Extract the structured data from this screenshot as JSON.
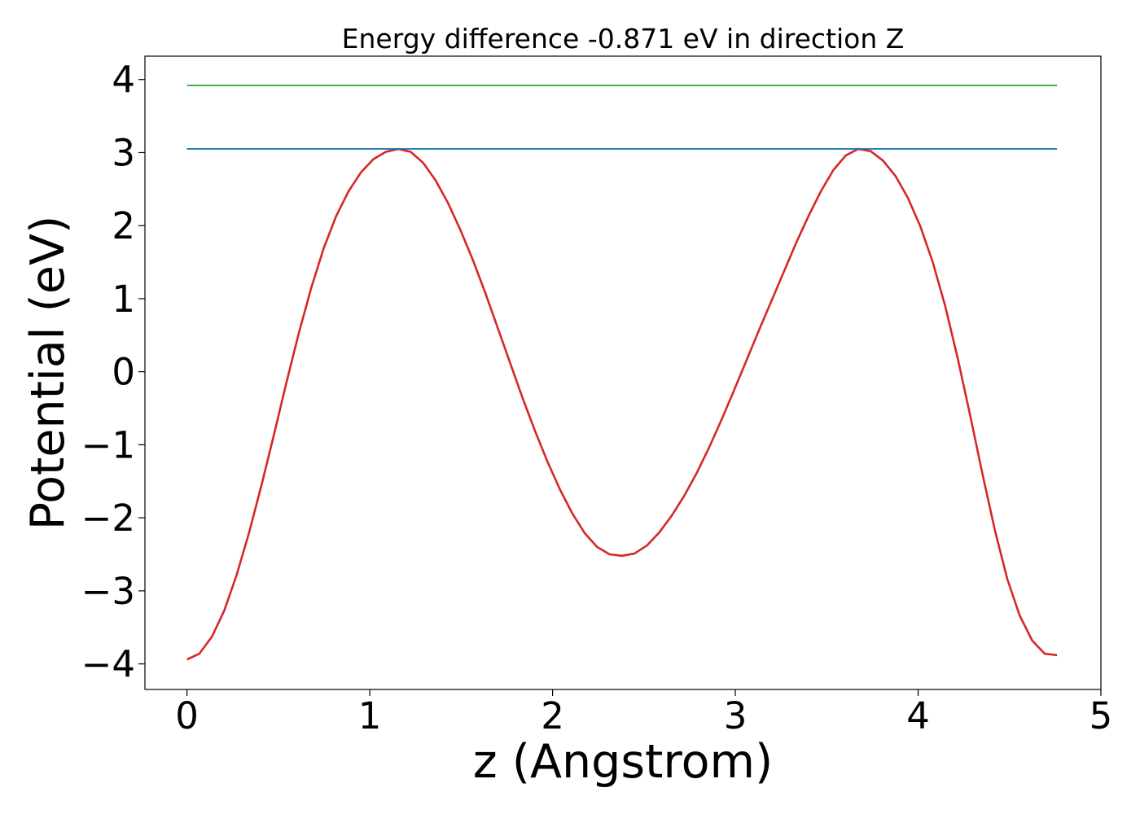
{
  "chart_data": {
    "type": "line",
    "title": "Energy difference -0.871 eV in direction Z",
    "xlabel": "z (Angstrom)",
    "ylabel": "Potential (eV)",
    "xlim": [
      -0.23,
      5.0
    ],
    "ylim": [
      -4.35,
      4.32
    ],
    "xticks": [
      0,
      1,
      2,
      3,
      4,
      5
    ],
    "xtick_labels": [
      "0",
      "1",
      "2",
      "3",
      "4",
      "5"
    ],
    "yticks": [
      -4,
      -3,
      -2,
      -1,
      0,
      1,
      2,
      3,
      4
    ],
    "ytick_labels": [
      "−4",
      "−3",
      "−2",
      "−1",
      "0",
      "1",
      "2",
      "3",
      "4"
    ],
    "grid": false,
    "series": [
      {
        "color": "#d62728",
        "x": [
          0.0,
          0.068,
          0.136,
          0.204,
          0.272,
          0.34,
          0.408,
          0.476,
          0.544,
          0.612,
          0.68,
          0.748,
          0.816,
          0.884,
          0.952,
          1.02,
          1.088,
          1.156,
          1.224,
          1.292,
          1.36,
          1.428,
          1.496,
          1.564,
          1.632,
          1.7,
          1.768,
          1.836,
          1.904,
          1.972,
          2.04,
          2.108,
          2.176,
          2.244,
          2.312,
          2.38,
          2.448,
          2.516,
          2.584,
          2.652,
          2.72,
          2.788,
          2.856,
          2.924,
          2.992,
          3.06,
          3.128,
          3.196,
          3.264,
          3.332,
          3.4,
          3.468,
          3.536,
          3.604,
          3.672,
          3.74,
          3.808,
          3.876,
          3.944,
          4.012,
          4.08,
          4.148,
          4.216,
          4.284,
          4.352,
          4.42,
          4.488,
          4.556,
          4.624,
          4.692,
          4.76
        ],
        "y": [
          -3.94,
          -3.86,
          -3.63,
          -3.27,
          -2.78,
          -2.2,
          -1.55,
          -0.86,
          -0.15,
          0.53,
          1.15,
          1.69,
          2.13,
          2.47,
          2.73,
          2.91,
          3.01,
          3.05,
          3.01,
          2.86,
          2.62,
          2.31,
          1.94,
          1.53,
          1.08,
          0.6,
          0.12,
          -0.36,
          -0.81,
          -1.23,
          -1.61,
          -1.94,
          -2.21,
          -2.4,
          -2.5,
          -2.52,
          -2.49,
          -2.38,
          -2.2,
          -1.97,
          -1.7,
          -1.39,
          -1.04,
          -0.66,
          -0.26,
          0.15,
          0.56,
          0.96,
          1.36,
          1.76,
          2.13,
          2.47,
          2.76,
          2.96,
          3.05,
          3.02,
          2.89,
          2.68,
          2.38,
          1.99,
          1.5,
          0.9,
          0.19,
          -0.59,
          -1.4,
          -2.17,
          -2.84,
          -3.34,
          -3.68,
          -3.86,
          -3.88
        ]
      },
      {
        "color": "#1f77b4",
        "x": [
          0.0,
          4.76
        ],
        "y": [
          3.05,
          3.05
        ]
      },
      {
        "color": "#2ca02c",
        "x": [
          0.0,
          4.76
        ],
        "y": [
          3.92,
          3.92
        ]
      }
    ]
  }
}
